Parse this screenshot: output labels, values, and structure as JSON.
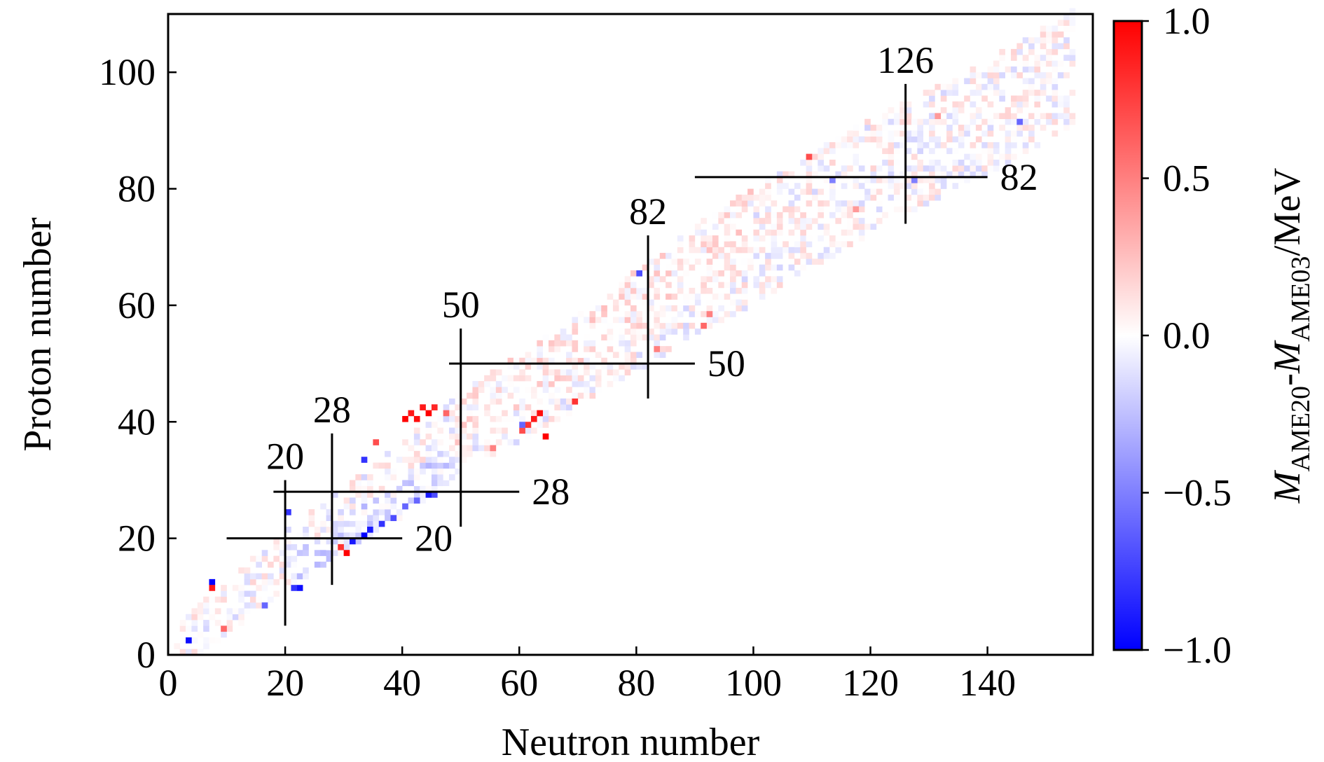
{
  "chart_data": {
    "type": "heatmap",
    "xlabel": "Neutron number",
    "ylabel": "Proton number",
    "xlim": [
      0,
      158
    ],
    "ylim": [
      0,
      110
    ],
    "xticks": [
      0,
      20,
      40,
      60,
      80,
      100,
      120,
      140
    ],
    "yticks": [
      0,
      20,
      40,
      60,
      80,
      100
    ],
    "colorbar": {
      "label_parts": [
        "M",
        "AME20",
        "-",
        "M",
        "AME03",
        "/MeV"
      ],
      "min": -1.0,
      "max": 1.0,
      "ticks": [
        "1.0",
        "0.5",
        "0.0",
        "−0.5",
        "−1.0"
      ],
      "tick_values": [
        1.0,
        0.5,
        0.0,
        -0.5,
        -1.0
      ],
      "colors": {
        "low": "#0000ff",
        "mid": "#ffffff",
        "high": "#ff0000"
      }
    },
    "magic_lines": [
      {
        "orientation": "vertical",
        "N": 20,
        "Z_range": [
          5,
          30
        ],
        "label": "20"
      },
      {
        "orientation": "vertical",
        "N": 28,
        "Z_range": [
          12,
          38
        ],
        "label": "28"
      },
      {
        "orientation": "vertical",
        "N": 50,
        "Z_range": [
          22,
          56
        ],
        "label": "50"
      },
      {
        "orientation": "vertical",
        "N": 82,
        "Z_range": [
          44,
          72
        ],
        "label": "82"
      },
      {
        "orientation": "vertical",
        "N": 126,
        "Z_range": [
          74,
          98
        ],
        "label": "126"
      },
      {
        "orientation": "horizontal",
        "Z": 20,
        "N_range": [
          10,
          40
        ],
        "label": "20"
      },
      {
        "orientation": "horizontal",
        "Z": 28,
        "N_range": [
          18,
          60
        ],
        "label": "28"
      },
      {
        "orientation": "horizontal",
        "Z": 50,
        "N_range": [
          48,
          90
        ],
        "label": "50"
      },
      {
        "orientation": "horizontal",
        "Z": 82,
        "N_range": [
          90,
          140
        ],
        "label": "82"
      }
    ],
    "nuclide_band": {
      "description_points_NZ": [
        [
          0,
          0
        ],
        [
          10,
          8
        ],
        [
          20,
          16
        ],
        [
          30,
          23
        ],
        [
          40,
          30
        ],
        [
          50,
          38
        ],
        [
          60,
          44
        ],
        [
          70,
          50
        ],
        [
          80,
          57
        ],
        [
          90,
          64
        ],
        [
          100,
          70
        ],
        [
          110,
          76
        ],
        [
          120,
          82
        ],
        [
          130,
          87
        ],
        [
          140,
          92
        ],
        [
          150,
          98
        ],
        [
          157,
          102
        ]
      ],
      "half_width_Z": [
        3,
        9
      ]
    },
    "highlighted_cells": [
      {
        "N": 3,
        "Z": 2,
        "value": -0.95
      },
      {
        "N": 7,
        "Z": 12,
        "value": -1.0
      },
      {
        "N": 7,
        "Z": 11,
        "value": 0.9
      },
      {
        "N": 9,
        "Z": 4,
        "value": 0.6
      },
      {
        "N": 22,
        "Z": 11,
        "value": -0.95
      },
      {
        "N": 21,
        "Z": 11,
        "value": -0.8
      },
      {
        "N": 16,
        "Z": 8,
        "value": -0.6
      },
      {
        "N": 20,
        "Z": 24,
        "value": -0.8
      },
      {
        "N": 30,
        "Z": 17,
        "value": 1.0
      },
      {
        "N": 29,
        "Z": 18,
        "value": 0.8
      },
      {
        "N": 31,
        "Z": 19,
        "value": -0.9
      },
      {
        "N": 33,
        "Z": 20,
        "value": -1.0
      },
      {
        "N": 34,
        "Z": 21,
        "value": -0.9
      },
      {
        "N": 36,
        "Z": 22,
        "value": -0.8
      },
      {
        "N": 38,
        "Z": 23,
        "value": -0.7
      },
      {
        "N": 40,
        "Z": 25,
        "value": -0.6
      },
      {
        "N": 42,
        "Z": 26,
        "value": -0.6
      },
      {
        "N": 44,
        "Z": 27,
        "value": -0.9
      },
      {
        "N": 45,
        "Z": 27,
        "value": -0.7
      },
      {
        "N": 33,
        "Z": 33,
        "value": -0.8
      },
      {
        "N": 35,
        "Z": 36,
        "value": 0.7
      },
      {
        "N": 40,
        "Z": 40,
        "value": 1.0
      },
      {
        "N": 41,
        "Z": 41,
        "value": 0.9
      },
      {
        "N": 42,
        "Z": 40,
        "value": 0.95
      },
      {
        "N": 43,
        "Z": 42,
        "value": 0.9
      },
      {
        "N": 44,
        "Z": 41,
        "value": 1.0
      },
      {
        "N": 45,
        "Z": 42,
        "value": 0.85
      },
      {
        "N": 47,
        "Z": 41,
        "value": 0.6
      },
      {
        "N": 55,
        "Z": 35,
        "value": 0.5
      },
      {
        "N": 60,
        "Z": 38,
        "value": 0.7
      },
      {
        "N": 61,
        "Z": 39,
        "value": 0.8
      },
      {
        "N": 62,
        "Z": 40,
        "value": 0.9
      },
      {
        "N": 63,
        "Z": 41,
        "value": 0.95
      },
      {
        "N": 64,
        "Z": 37,
        "value": 1.0
      },
      {
        "N": 60,
        "Z": 39,
        "value": -0.6
      },
      {
        "N": 69,
        "Z": 43,
        "value": 0.8
      },
      {
        "N": 80,
        "Z": 65,
        "value": -0.7
      },
      {
        "N": 83,
        "Z": 52,
        "value": 0.5
      },
      {
        "N": 91,
        "Z": 56,
        "value": 0.6
      },
      {
        "N": 92,
        "Z": 58,
        "value": 0.5
      },
      {
        "N": 109,
        "Z": 85,
        "value": 0.7
      },
      {
        "N": 113,
        "Z": 81,
        "value": -0.5
      },
      {
        "N": 117,
        "Z": 76,
        "value": 0.4
      },
      {
        "N": 127,
        "Z": 81,
        "value": -0.5
      },
      {
        "N": 131,
        "Z": 92,
        "value": 0.4
      },
      {
        "N": 145,
        "Z": 91,
        "value": -0.6
      }
    ]
  }
}
